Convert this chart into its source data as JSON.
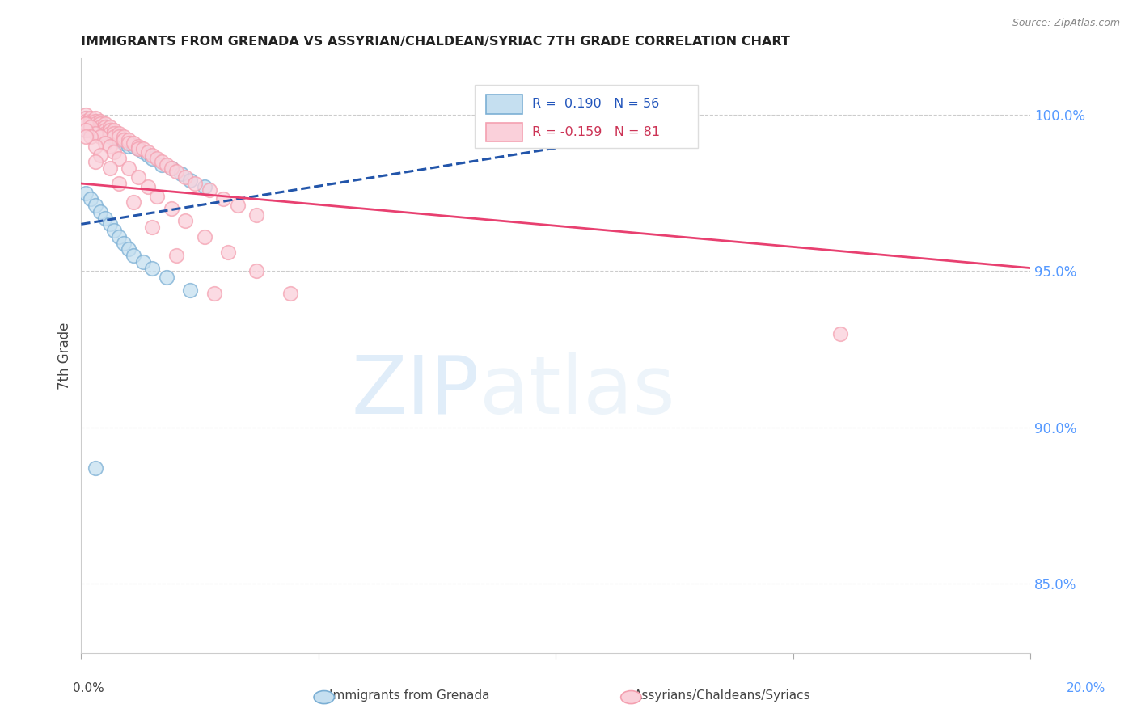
{
  "title": "IMMIGRANTS FROM GRENADA VS ASSYRIAN/CHALDEAN/SYRIAC 7TH GRADE CORRELATION CHART",
  "source": "Source: ZipAtlas.com",
  "ylabel": "7th Grade",
  "ylabel_right_ticks": [
    "100.0%",
    "95.0%",
    "90.0%",
    "85.0%"
  ],
  "ylabel_right_vals": [
    1.0,
    0.95,
    0.9,
    0.85
  ],
  "xmin": 0.0,
  "xmax": 0.2,
  "ymin": 0.828,
  "ymax": 1.018,
  "watermark_zip": "ZIP",
  "watermark_atlas": "atlas",
  "blue_color": "#7bafd4",
  "pink_color": "#f4a0b0",
  "blue_fill": "#c5dff0",
  "pink_fill": "#fad0da",
  "blue_line_color": "#2255aa",
  "pink_line_color": "#e84070",
  "grid_color": "#cccccc",
  "blue_line_x0": 0.0,
  "blue_line_x1": 0.115,
  "blue_line_y0": 0.965,
  "blue_line_y1": 0.993,
  "pink_line_x0": 0.0,
  "pink_line_x1": 0.2,
  "pink_line_y0": 0.978,
  "pink_line_y1": 0.951,
  "blue_scatter_x": [
    0.001,
    0.001,
    0.001,
    0.001,
    0.001,
    0.002,
    0.002,
    0.002,
    0.002,
    0.003,
    0.003,
    0.003,
    0.003,
    0.004,
    0.004,
    0.004,
    0.004,
    0.005,
    0.005,
    0.005,
    0.006,
    0.006,
    0.006,
    0.007,
    0.007,
    0.008,
    0.008,
    0.009,
    0.01,
    0.01,
    0.011,
    0.012,
    0.013,
    0.014,
    0.015,
    0.017,
    0.019,
    0.021,
    0.023,
    0.026,
    0.001,
    0.002,
    0.003,
    0.004,
    0.005,
    0.006,
    0.007,
    0.008,
    0.009,
    0.01,
    0.011,
    0.013,
    0.015,
    0.018,
    0.023,
    0.003
  ],
  "blue_scatter_y": [
    0.999,
    0.998,
    0.997,
    0.996,
    0.995,
    0.998,
    0.997,
    0.996,
    0.995,
    0.998,
    0.997,
    0.996,
    0.995,
    0.997,
    0.996,
    0.995,
    0.994,
    0.996,
    0.995,
    0.994,
    0.995,
    0.994,
    0.993,
    0.994,
    0.993,
    0.993,
    0.992,
    0.991,
    0.991,
    0.99,
    0.99,
    0.989,
    0.988,
    0.987,
    0.986,
    0.984,
    0.983,
    0.981,
    0.979,
    0.977,
    0.975,
    0.973,
    0.971,
    0.969,
    0.967,
    0.965,
    0.963,
    0.961,
    0.959,
    0.957,
    0.955,
    0.953,
    0.951,
    0.948,
    0.944,
    0.887
  ],
  "pink_scatter_x": [
    0.001,
    0.001,
    0.001,
    0.001,
    0.002,
    0.002,
    0.002,
    0.002,
    0.003,
    0.003,
    0.003,
    0.003,
    0.003,
    0.004,
    0.004,
    0.004,
    0.004,
    0.005,
    0.005,
    0.005,
    0.005,
    0.006,
    0.006,
    0.006,
    0.007,
    0.007,
    0.007,
    0.008,
    0.008,
    0.009,
    0.009,
    0.01,
    0.01,
    0.011,
    0.012,
    0.012,
    0.013,
    0.014,
    0.015,
    0.016,
    0.017,
    0.018,
    0.019,
    0.02,
    0.022,
    0.024,
    0.027,
    0.03,
    0.033,
    0.037,
    0.001,
    0.002,
    0.003,
    0.004,
    0.005,
    0.006,
    0.007,
    0.008,
    0.01,
    0.012,
    0.014,
    0.016,
    0.019,
    0.022,
    0.026,
    0.031,
    0.037,
    0.044,
    0.001,
    0.002,
    0.003,
    0.004,
    0.006,
    0.008,
    0.011,
    0.015,
    0.02,
    0.028,
    0.001,
    0.003,
    0.16
  ],
  "pink_scatter_y": [
    1.0,
    0.999,
    0.998,
    0.997,
    0.999,
    0.998,
    0.997,
    0.996,
    0.999,
    0.998,
    0.997,
    0.996,
    0.995,
    0.998,
    0.997,
    0.996,
    0.995,
    0.997,
    0.996,
    0.995,
    0.994,
    0.996,
    0.995,
    0.994,
    0.995,
    0.994,
    0.993,
    0.994,
    0.993,
    0.993,
    0.992,
    0.992,
    0.991,
    0.991,
    0.99,
    0.989,
    0.989,
    0.988,
    0.987,
    0.986,
    0.985,
    0.984,
    0.983,
    0.982,
    0.98,
    0.978,
    0.976,
    0.973,
    0.971,
    0.968,
    0.997,
    0.996,
    0.994,
    0.993,
    0.991,
    0.99,
    0.988,
    0.986,
    0.983,
    0.98,
    0.977,
    0.974,
    0.97,
    0.966,
    0.961,
    0.956,
    0.95,
    0.943,
    0.995,
    0.993,
    0.99,
    0.987,
    0.983,
    0.978,
    0.972,
    0.964,
    0.955,
    0.943,
    0.993,
    0.985,
    0.93
  ]
}
